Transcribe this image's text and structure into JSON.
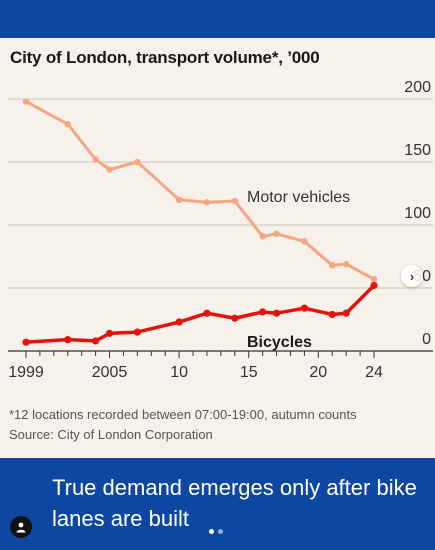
{
  "chart_data": {
    "type": "line",
    "title": "City of London, transport volume*, ’000",
    "xlabel": "",
    "ylabel": "",
    "x": [
      1999,
      2002,
      2003,
      2004,
      2006,
      2009,
      2011,
      2012,
      2014,
      2015,
      2016,
      2019,
      2020,
      2021,
      2022,
      2024
    ],
    "xlim": [
      1999,
      2024
    ],
    "ylim": [
      0,
      200
    ],
    "y_ticks": [
      0,
      50,
      100,
      150,
      200
    ],
    "y_tick_labels": [
      "0",
      "50",
      "100",
      "150",
      "200"
    ],
    "x_ticks": [
      1999,
      2005,
      2010,
      2015,
      2020,
      2024
    ],
    "x_tick_labels": [
      "1999",
      "2005",
      "10",
      "15",
      "20",
      "24"
    ],
    "grid": true,
    "series": [
      {
        "name": "Motor vehicles",
        "color": "#f4a582",
        "x": [
          1999,
          2002,
          2004,
          2005,
          2007,
          2010,
          2012,
          2014,
          2016,
          2017,
          2019,
          2021,
          2022,
          2024
        ],
        "values": [
          198,
          180,
          152,
          144,
          150,
          120,
          118,
          119,
          91,
          93,
          87,
          68,
          69,
          57
        ]
      },
      {
        "name": "Bicycles",
        "color": "#e3120b",
        "x": [
          1999,
          2002,
          2004,
          2005,
          2007,
          2010,
          2012,
          2014,
          2016,
          2017,
          2019,
          2021,
          2022,
          2024
        ],
        "values": [
          7,
          9,
          8,
          14,
          15,
          23,
          30,
          26,
          31,
          30,
          34,
          29,
          30,
          52
        ]
      }
    ]
  },
  "footnote": {
    "line1": "*12 locations recorded between 07:00-19:00, autumn counts",
    "line2": "Source: City of London Corporation"
  },
  "caption": "True demand emerges only after bike lanes are built",
  "ui": {
    "next_icon": "chevron-right-icon",
    "next_glyph": "›",
    "profile_icon": "user-icon"
  }
}
